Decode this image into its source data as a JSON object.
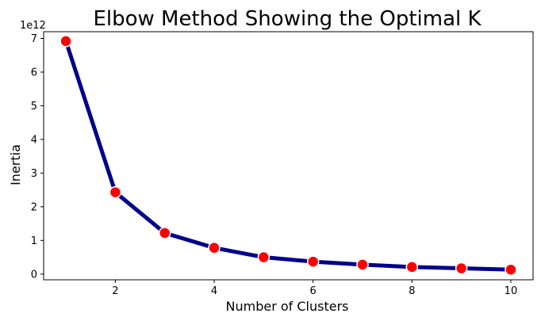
{
  "chart_data": {
    "type": "line",
    "title": "Elbow Method Showing the Optimal K",
    "xlabel": "Number of Clusters",
    "ylabel": "Inertia",
    "y_offset_label": "1e12",
    "x": [
      1,
      2,
      3,
      4,
      5,
      6,
      7,
      8,
      9,
      10
    ],
    "series": [
      {
        "name": "Inertia",
        "values": [
          6.92,
          2.43,
          1.22,
          0.78,
          0.5,
          0.37,
          0.28,
          0.21,
          0.17,
          0.13
        ]
      }
    ],
    "xlim": [
      0.55,
      10.45
    ],
    "ylim": [
      -0.17,
      7.2
    ],
    "xticks": [
      2,
      4,
      6,
      8,
      10
    ],
    "xtick_labels": [
      "2",
      "4",
      "6",
      "8",
      "10"
    ],
    "yticks": [
      0,
      1,
      2,
      3,
      4,
      5,
      6,
      7
    ],
    "ytick_labels": [
      "0",
      "1",
      "2",
      "3",
      "4",
      "5",
      "6",
      "7"
    ],
    "line_color": "#00008b",
    "marker_color": "#ff0000",
    "grid": false
  }
}
